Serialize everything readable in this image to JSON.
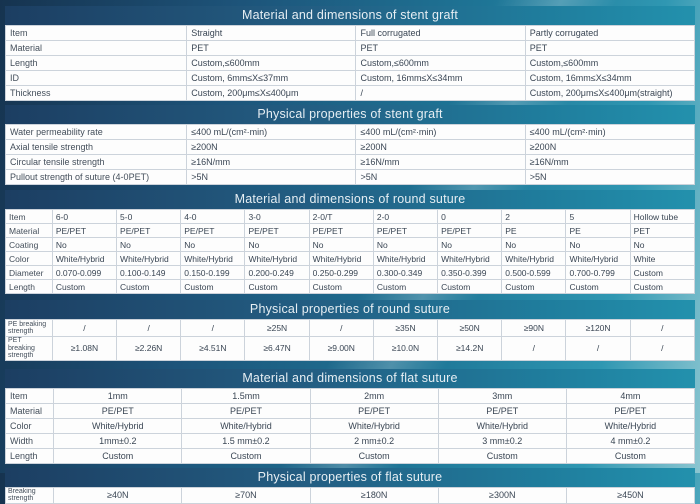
{
  "colors": {
    "header_gradient_left": "#1c3e62",
    "header_gradient_right": "#2391ad",
    "header_text": "#e6eef3",
    "table_text": "#3a4654",
    "table_border": "#ccd3db",
    "background_navy": "#16334f",
    "background_teal": "#2f97b2"
  },
  "sections": [
    {
      "title": "Material and dimensions of stent graft",
      "rows": [
        {
          "label": "Item",
          "values": [
            "Straight",
            "Full corrugated",
            "Partly corrugated"
          ]
        },
        {
          "label": "Material",
          "values": [
            "PET",
            "PET",
            "PET"
          ]
        },
        {
          "label": "Length",
          "values": [
            "Custom,≤600mm",
            "Custom,≤600mm",
            "Custom,≤600mm"
          ]
        },
        {
          "label": "ID",
          "values": [
            "Custom, 6mm≤X≤37mm",
            "Custom, 16mm≤X≤34mm",
            "Custom, 16mm≤X≤34mm"
          ]
        },
        {
          "label": "Thickness",
          "values": [
            "Custom, 200μm≤X≤400μm",
            "/",
            "Custom, 200μm≤X≤400μm(straight)"
          ]
        }
      ]
    },
    {
      "title": "Physical properties of stent graft",
      "rows": [
        {
          "label": "Water permeability rate",
          "values": [
            "≤400 mL/(cm²·min)",
            "≤400 mL/(cm²·min)",
            "≤400 mL/(cm²·min)"
          ]
        },
        {
          "label": "Axial tensile strength",
          "values": [
            "≥200N",
            "≥200N",
            "≥200N"
          ]
        },
        {
          "label": "Circular tensile strength",
          "values": [
            "≥16N/mm",
            "≥16N/mm",
            "≥16N/mm"
          ]
        },
        {
          "label": "Pullout strength of suture (4-0PET)",
          "values": [
            ">5N",
            ">5N",
            ">5N"
          ]
        }
      ]
    },
    {
      "title": "Material and dimensions of round suture",
      "rows": [
        {
          "label": "Item",
          "values": [
            "6-0",
            "5-0",
            "4-0",
            "3-0",
            "2-0/T",
            "2-0",
            "0",
            "2",
            "5",
            "Hollow tube"
          ]
        },
        {
          "label": "Material",
          "values": [
            "PE/PET",
            "PE/PET",
            "PE/PET",
            "PE/PET",
            "PE/PET",
            "PE/PET",
            "PE/PET",
            "PE",
            "PE",
            "PET"
          ]
        },
        {
          "label": "Coating",
          "values": [
            "No",
            "No",
            "No",
            "No",
            "No",
            "No",
            "No",
            "No",
            "No",
            "No"
          ]
        },
        {
          "label": "Color",
          "values": [
            "White/Hybrid",
            "White/Hybrid",
            "White/Hybrid",
            "White/Hybrid",
            "White/Hybrid",
            "White/Hybrid",
            "White/Hybrid",
            "White/Hybrid",
            "White/Hybrid",
            "White"
          ]
        },
        {
          "label": "Diameter",
          "values": [
            "0.070-0.099",
            "0.100-0.149",
            "0.150-0.199",
            "0.200-0.249",
            "0.250-0.299",
            "0.300-0.349",
            "0.350-0.399",
            "0.500-0.599",
            "0.700-0.799",
            "Custom"
          ]
        },
        {
          "label": "Length",
          "values": [
            "Custom",
            "Custom",
            "Custom",
            "Custom",
            "Custom",
            "Custom",
            "Custom",
            "Custom",
            "Custom",
            "Custom"
          ]
        }
      ]
    },
    {
      "title": "Physical properties of round suture",
      "rows": [
        {
          "label": "PE breaking strength",
          "values": [
            "/",
            "/",
            "/",
            "≥25N",
            "/",
            "≥35N",
            "≥50N",
            "≥90N",
            "≥120N",
            "/"
          ]
        },
        {
          "label": "PET breaking strength",
          "values": [
            "≥1.08N",
            "≥2.26N",
            "≥4.51N",
            "≥6.47N",
            "≥9.00N",
            "≥10.0N",
            "≥14.2N",
            "/",
            "/",
            "/"
          ]
        }
      ]
    },
    {
      "title": "Material and dimensions of flat suture",
      "rows": [
        {
          "label": "Item",
          "values": [
            "1mm",
            "1.5mm",
            "2mm",
            "3mm",
            "4mm"
          ]
        },
        {
          "label": "Material",
          "values": [
            "PE/PET",
            "PE/PET",
            "PE/PET",
            "PE/PET",
            "PE/PET"
          ]
        },
        {
          "label": "Color",
          "values": [
            "White/Hybrid",
            "White/Hybrid",
            "White/Hybrid",
            "White/Hybrid",
            "White/Hybrid"
          ]
        },
        {
          "label": "Width",
          "values": [
            "1mm±0.2",
            "1.5 mm±0.2",
            "2 mm±0.2",
            "3 mm±0.2",
            "4 mm±0.2"
          ]
        },
        {
          "label": "Length",
          "values": [
            "Custom",
            "Custom",
            "Custom",
            "Custom",
            "Custom"
          ]
        }
      ]
    },
    {
      "title": "Physical properties of flat suture",
      "rows": [
        {
          "label": "Breaking strength",
          "values": [
            "≥40N",
            "≥70N",
            "≥180N",
            "≥300N",
            "≥450N"
          ]
        }
      ]
    }
  ]
}
